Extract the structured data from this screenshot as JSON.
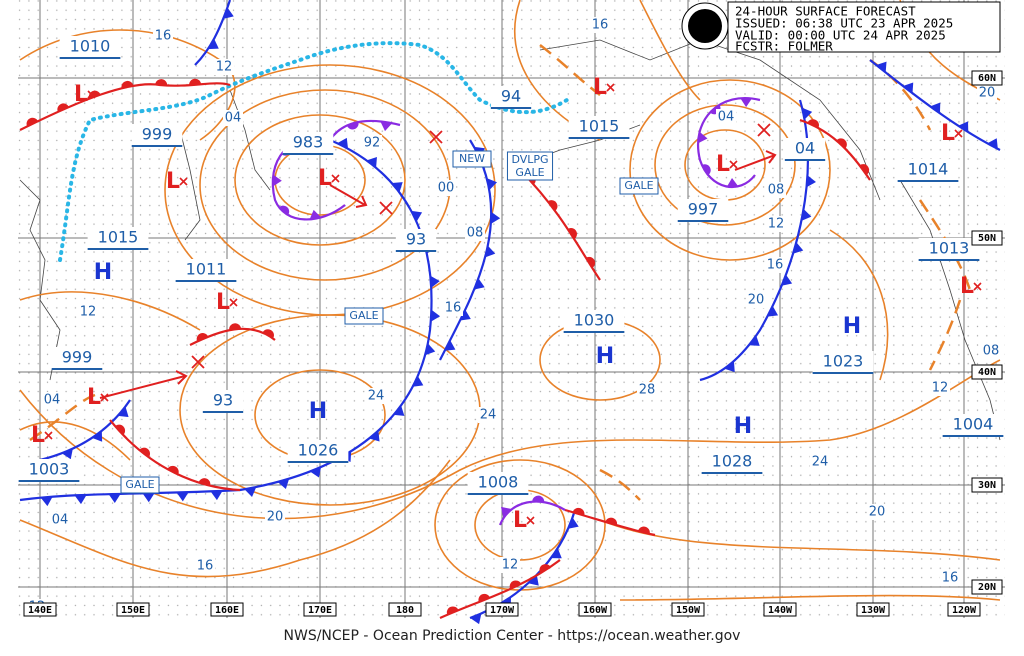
{
  "header": {
    "line1": "24-HOUR SURFACE FORECAST",
    "line2": "ISSUED: 06:38 UTC 23 APR 2025",
    "line3": "VALID:  00:00 UTC 24 APR 2025",
    "line4": "FCSTR:  FOLMER"
  },
  "isobar_labels": [
    "16",
    "12",
    "04",
    "92",
    "00",
    "08",
    "16",
    "24",
    "24",
    "28",
    "20",
    "16",
    "12",
    "08",
    "04",
    "16",
    "20",
    "12",
    "04",
    "04",
    "20",
    "16",
    "12",
    "24",
    "20",
    "16",
    "12",
    "08",
    "12"
  ],
  "pressure_labels": [
    "1010",
    "999",
    "1015",
    "1011",
    "983",
    "93",
    "999",
    "93",
    "1003",
    "1026",
    "1008",
    "1030",
    "1028",
    "1023",
    "1004",
    "1013",
    "1014",
    "04",
    "997",
    "1015",
    "94"
  ],
  "tags": [
    "GALE",
    "GALE",
    "GALE",
    "NEW",
    "DVLPG",
    "GALE"
  ],
  "centers": [
    "H",
    "H",
    "H",
    "H",
    "H",
    "L",
    "L",
    "L",
    "L",
    "L",
    "L",
    "L",
    "L",
    "L",
    "L",
    "L"
  ],
  "longitude_labels": [
    "140E",
    "150E",
    "160E",
    "170E",
    "180",
    "170W",
    "160W",
    "150W",
    "140W",
    "130W",
    "120W"
  ],
  "latitude_labels": [
    "60N",
    "50N",
    "40N",
    "30N",
    "20N"
  ],
  "footer": "NWS/NCEP - Ocean Prediction Center - https://ocean.weather.gov"
}
